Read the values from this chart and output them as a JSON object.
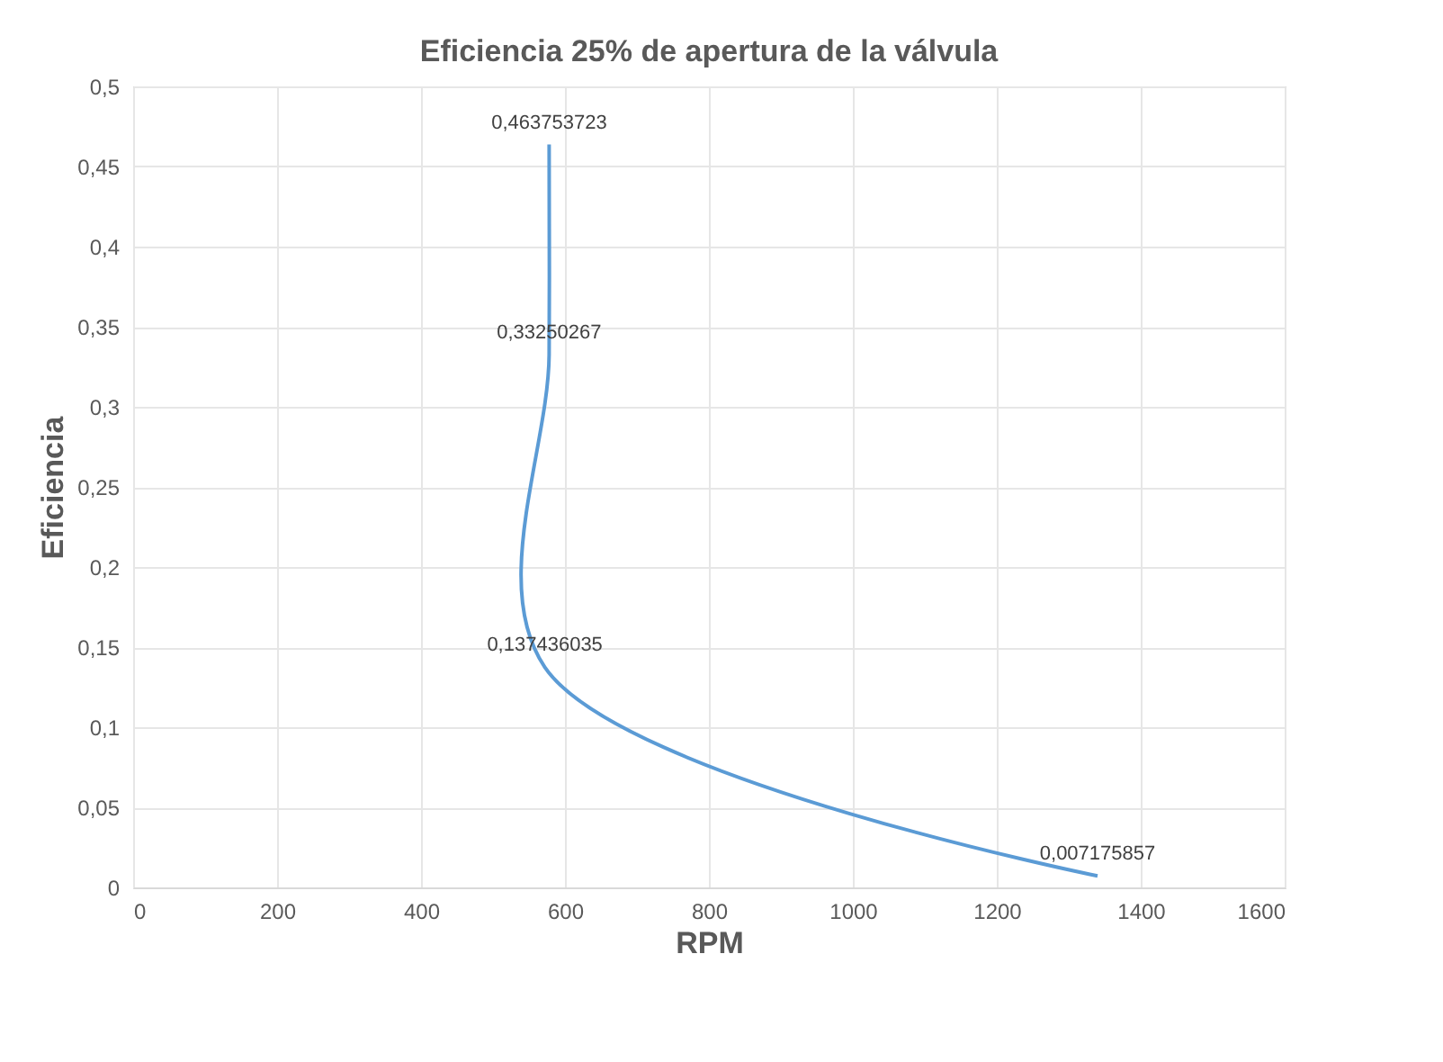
{
  "chart_data": {
    "type": "line",
    "title": "Eficiencia 25% de apertura de la válvula",
    "xlabel": "RPM",
    "ylabel": "Eficiencia",
    "x": [
      578,
      578,
      572,
      1340
    ],
    "series": [
      {
        "color": "#5b9bd5",
        "values": [
          0.463753723,
          0.33250267,
          0.137436035,
          0.007175857
        ]
      }
    ],
    "xlim": [
      0,
      1600
    ],
    "xticks": [
      0,
      200,
      400,
      600,
      800,
      1000,
      1200,
      1400,
      1600
    ],
    "ylim": [
      0,
      0.5
    ],
    "yticks": [
      0,
      {
        "value": 0.05,
        "label": "0,05"
      },
      {
        "value": 0.1,
        "label": "0,1"
      },
      {
        "value": 0.15,
        "label": "0,15"
      },
      {
        "value": 0.2,
        "label": "0,2"
      },
      {
        "value": 0.25,
        "label": "0,25"
      },
      {
        "value": 0.3,
        "label": "0,3"
      },
      {
        "value": 0.35,
        "label": "0,35"
      },
      {
        "value": 0.4,
        "label": "0,4"
      },
      {
        "value": 0.45,
        "label": "0,45"
      },
      {
        "value": 0.5,
        "label": "0,5"
      }
    ],
    "value_labels": [
      "0,463753723",
      "0,33250267",
      "0,137436035",
      "0,007175857"
    ],
    "grid": true,
    "marker": "none",
    "line_style": "solid"
  }
}
